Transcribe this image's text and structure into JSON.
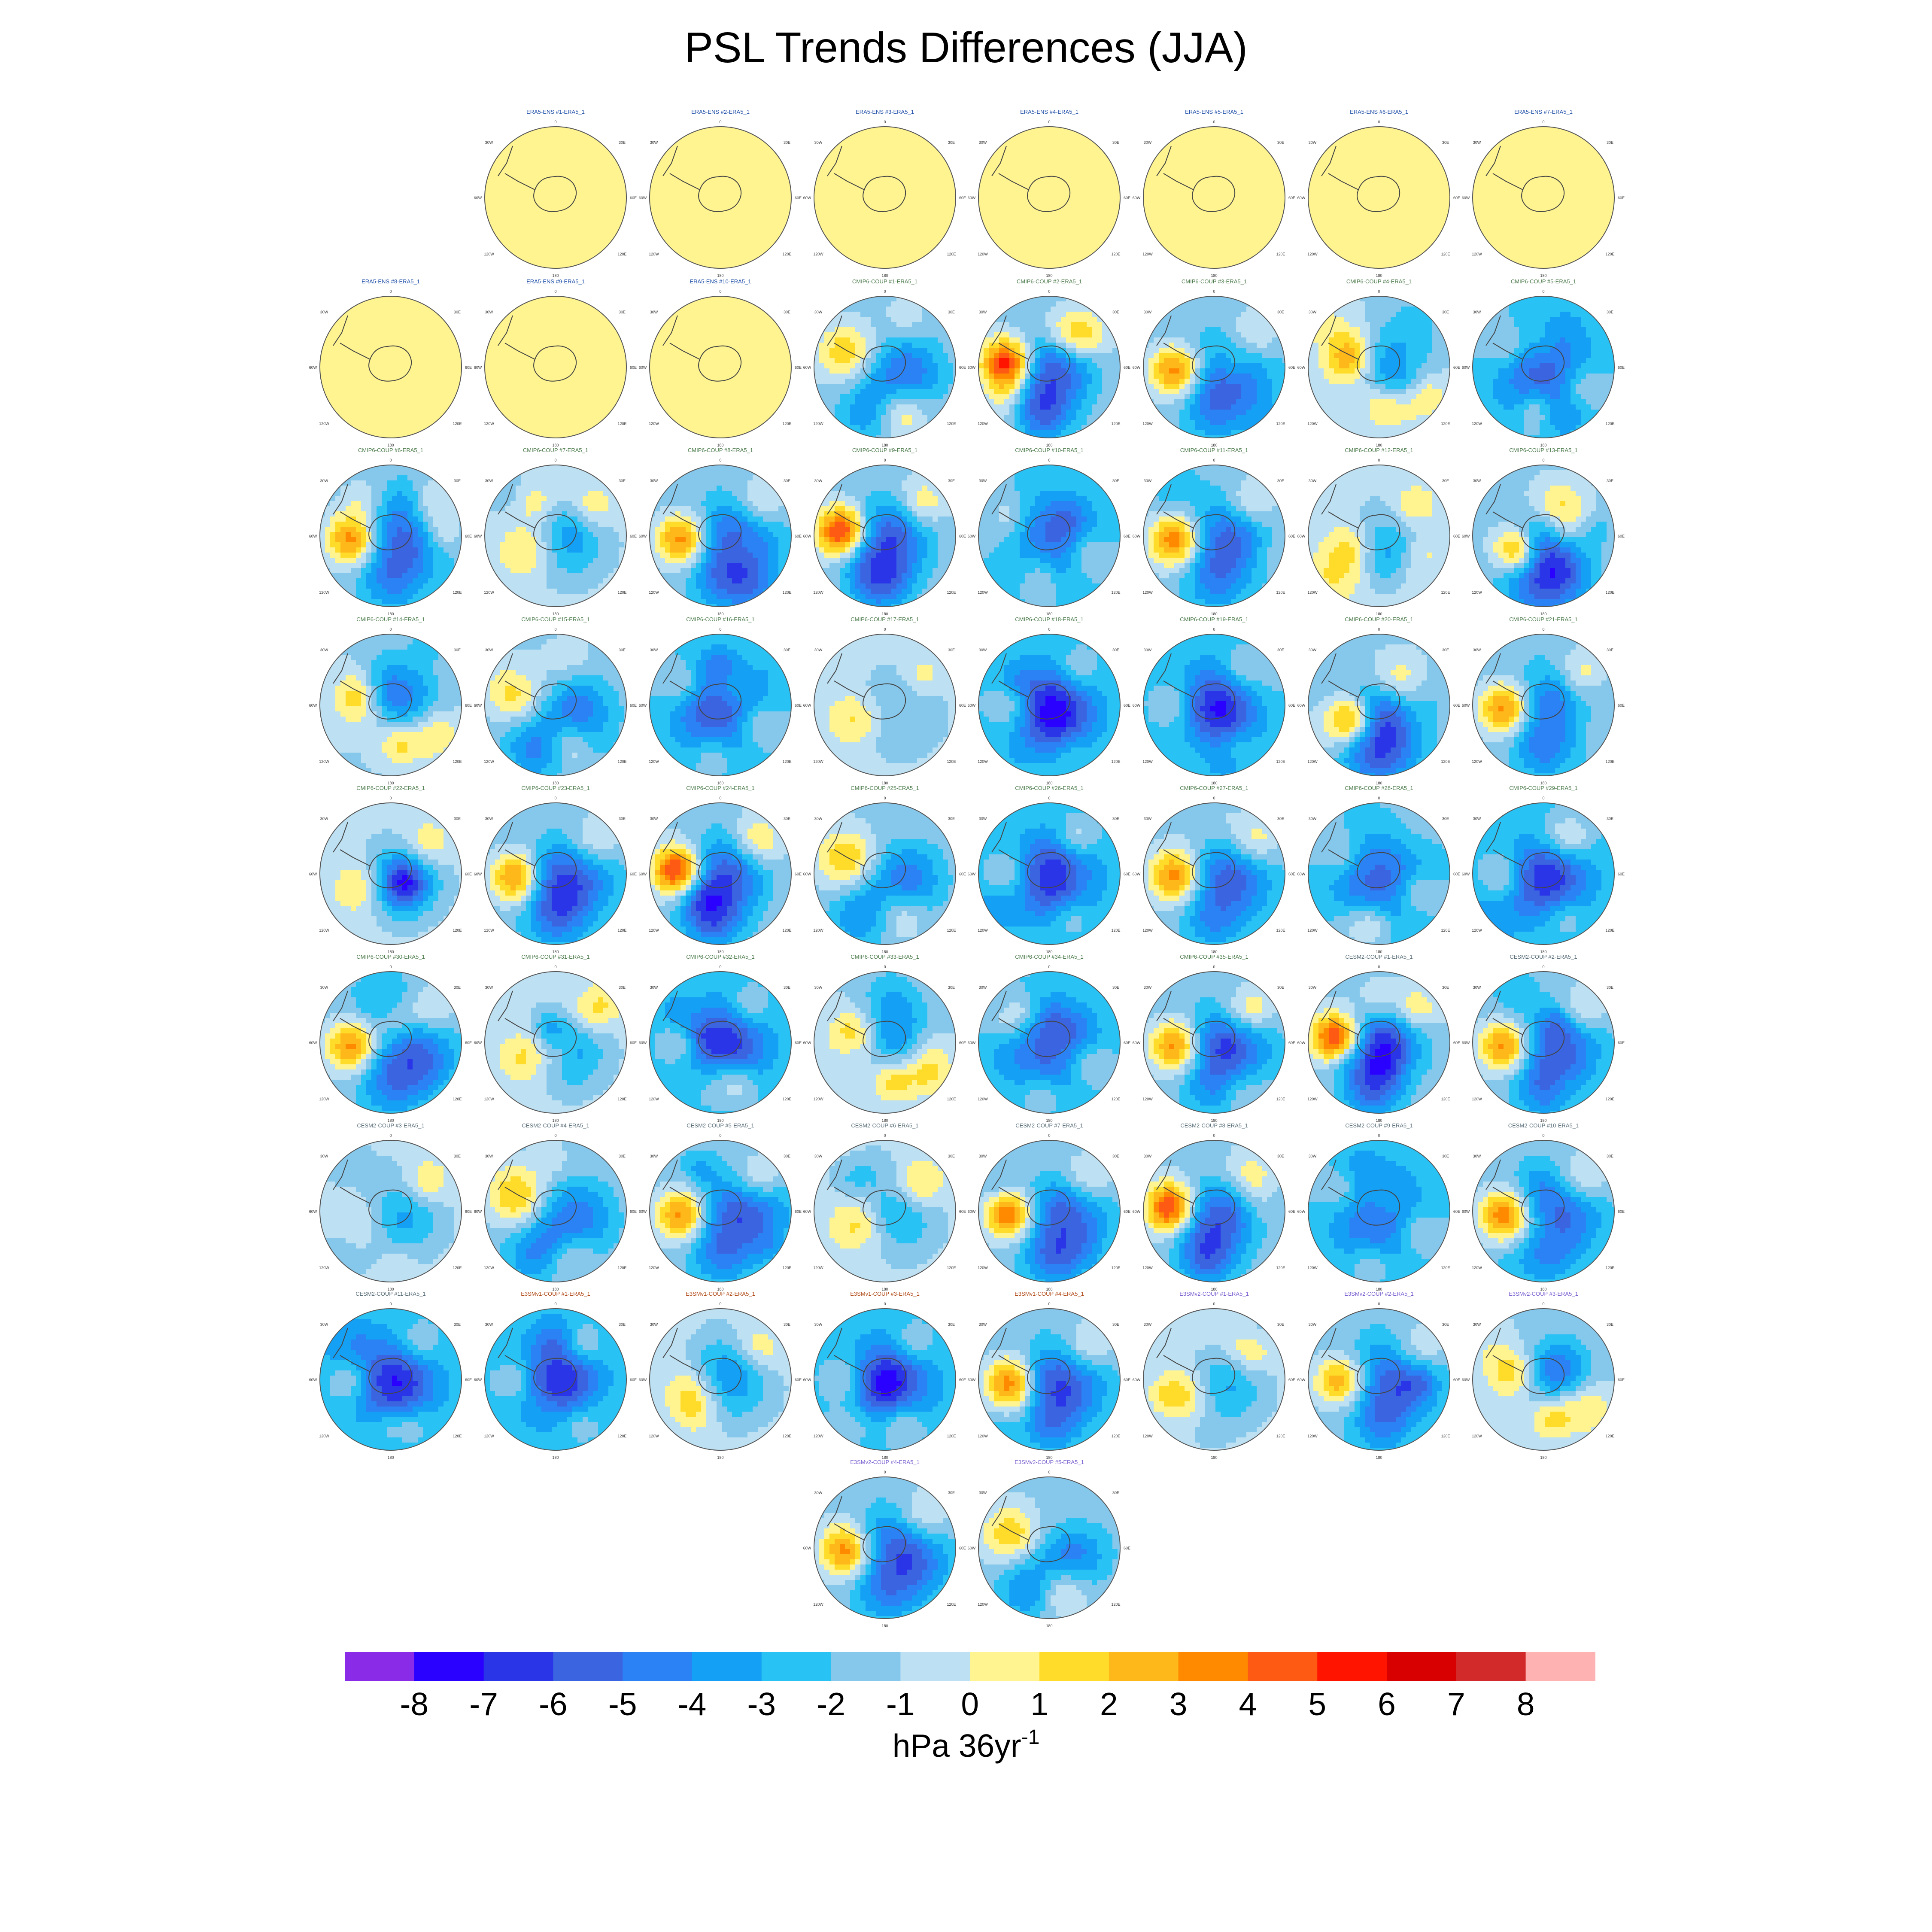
{
  "title": "PSL Trends Differences (JJA)",
  "chart_data": {
    "type": "heatmap",
    "projection": "south polar stereographic",
    "title": "PSL Trends Differences (JJA)",
    "colorbar": {
      "ticks": [
        "-8",
        "-7",
        "-6",
        "-5",
        "-4",
        "-3",
        "-2",
        "-1",
        "0",
        "1",
        "2",
        "3",
        "4",
        "5",
        "6",
        "7",
        "8"
      ],
      "colors": [
        "#8a2be8",
        "#2a00ff",
        "#2a35e8",
        "#3a64e0",
        "#2a82f4",
        "#14a0f4",
        "#28c2f4",
        "#86c8ec",
        "#bde0f2",
        "#fff490",
        "#ffdc2a",
        "#ffb81a",
        "#ff8a00",
        "#ff5a14",
        "#ff1400",
        "#d80000",
        "#d22a2a",
        "#ffb2b2"
      ],
      "units_base": "hPa 36yr",
      "units_sup": "-1"
    },
    "grid_labels": {
      "top": "0",
      "bottom": "180",
      "upper_left": "30W",
      "upper_right": "30E",
      "left": "60W",
      "right": "60E",
      "lower_left": "120W",
      "lower_right": "120E"
    },
    "panels": [
      {
        "label": "ERA5-ENS   #1-ERA5_1",
        "group": "ERA5-ENS",
        "pattern": "obs"
      },
      {
        "label": "ERA5-ENS   #2-ERA5_1",
        "group": "ERA5-ENS",
        "pattern": "obs"
      },
      {
        "label": "ERA5-ENS   #3-ERA5_1",
        "group": "ERA5-ENS",
        "pattern": "obs"
      },
      {
        "label": "ERA5-ENS   #4-ERA5_1",
        "group": "ERA5-ENS",
        "pattern": "obs"
      },
      {
        "label": "ERA5-ENS   #5-ERA5_1",
        "group": "ERA5-ENS",
        "pattern": "obs"
      },
      {
        "label": "ERA5-ENS   #6-ERA5_1",
        "group": "ERA5-ENS",
        "pattern": "obs"
      },
      {
        "label": "ERA5-ENS   #7-ERA5_1",
        "group": "ERA5-ENS",
        "pattern": "obs"
      },
      {
        "label": "ERA5-ENS   #8-ERA5_1",
        "group": "ERA5-ENS",
        "pattern": "obs"
      },
      {
        "label": "ERA5-ENS   #9-ERA5_1",
        "group": "ERA5-ENS",
        "pattern": "obs"
      },
      {
        "label": "ERA5-ENS   #10-ERA5_1",
        "group": "ERA5-ENS",
        "pattern": "obs"
      },
      {
        "label": "CMIP6-COUP  #1-ERA5_1",
        "group": "CMIP6-COUP",
        "pattern": "low"
      },
      {
        "label": "CMIP6-COUP  #2-ERA5_1",
        "group": "CMIP6-COUP",
        "pattern": "strong"
      },
      {
        "label": "CMIP6-COUP  #3-ERA5_1",
        "group": "CMIP6-COUP",
        "pattern": "west"
      },
      {
        "label": "CMIP6-COUP  #4-ERA5_1",
        "group": "CMIP6-COUP",
        "pattern": "mixed"
      },
      {
        "label": "CMIP6-COUP  #5-ERA5_1",
        "group": "CMIP6-COUP",
        "pattern": "ring"
      },
      {
        "label": "CMIP6-COUP  #6-ERA5_1",
        "group": "CMIP6-COUP",
        "pattern": "west"
      },
      {
        "label": "CMIP6-COUP  #7-ERA5_1",
        "group": "CMIP6-COUP",
        "pattern": "weak"
      },
      {
        "label": "CMIP6-COUP  #8-ERA5_1",
        "group": "CMIP6-COUP",
        "pattern": "west"
      },
      {
        "label": "CMIP6-COUP  #9-ERA5_1",
        "group": "CMIP6-COUP",
        "pattern": "strong"
      },
      {
        "label": "CMIP6-COUP  #10-ERA5_1",
        "group": "CMIP6-COUP",
        "pattern": "ring"
      },
      {
        "label": "CMIP6-COUP  #11-ERA5_1",
        "group": "CMIP6-COUP",
        "pattern": "west"
      },
      {
        "label": "CMIP6-COUP  #12-ERA5_1",
        "group": "CMIP6-COUP",
        "pattern": "weak"
      },
      {
        "label": "CMIP6-COUP  #13-ERA5_1",
        "group": "CMIP6-COUP",
        "pattern": "south"
      },
      {
        "label": "CMIP6-COUP  #14-ERA5_1",
        "group": "CMIP6-COUP",
        "pattern": "mixed"
      },
      {
        "label": "CMIP6-COUP  #15-ERA5_1",
        "group": "CMIP6-COUP",
        "pattern": "low"
      },
      {
        "label": "CMIP6-COUP  #16-ERA5_1",
        "group": "CMIP6-COUP",
        "pattern": "ring"
      },
      {
        "label": "CMIP6-COUP  #17-ERA5_1",
        "group": "CMIP6-COUP",
        "pattern": "weak"
      },
      {
        "label": "CMIP6-COUP  #18-ERA5_1",
        "group": "CMIP6-COUP",
        "pattern": "deep"
      },
      {
        "label": "CMIP6-COUP  #19-ERA5_1",
        "group": "CMIP6-COUP",
        "pattern": "deep"
      },
      {
        "label": "CMIP6-COUP  #20-ERA5_1",
        "group": "CMIP6-COUP",
        "pattern": "south"
      },
      {
        "label": "CMIP6-COUP  #21-ERA5_1",
        "group": "CMIP6-COUP",
        "pattern": "west"
      },
      {
        "label": "CMIP6-COUP  #22-ERA5_1",
        "group": "CMIP6-COUP",
        "pattern": "weak"
      },
      {
        "label": "CMIP6-COUP  #23-ERA5_1",
        "group": "CMIP6-COUP",
        "pattern": "west"
      },
      {
        "label": "CMIP6-COUP  #24-ERA5_1",
        "group": "CMIP6-COUP",
        "pattern": "strong"
      },
      {
        "label": "CMIP6-COUP  #25-ERA5_1",
        "group": "CMIP6-COUP",
        "pattern": "low"
      },
      {
        "label": "CMIP6-COUP  #26-ERA5_1",
        "group": "CMIP6-COUP",
        "pattern": "deep"
      },
      {
        "label": "CMIP6-COUP  #27-ERA5_1",
        "group": "CMIP6-COUP",
        "pattern": "west"
      },
      {
        "label": "CMIP6-COUP  #28-ERA5_1",
        "group": "CMIP6-COUP",
        "pattern": "ring"
      },
      {
        "label": "CMIP6-COUP  #29-ERA5_1",
        "group": "CMIP6-COUP",
        "pattern": "deep"
      },
      {
        "label": "CMIP6-COUP  #30-ERA5_1",
        "group": "CMIP6-COUP",
        "pattern": "west"
      },
      {
        "label": "CMIP6-COUP  #31-ERA5_1",
        "group": "CMIP6-COUP",
        "pattern": "weak"
      },
      {
        "label": "CMIP6-COUP  #32-ERA5_1",
        "group": "CMIP6-COUP",
        "pattern": "deep"
      },
      {
        "label": "CMIP6-COUP  #33-ERA5_1",
        "group": "CMIP6-COUP",
        "pattern": "mixed"
      },
      {
        "label": "CMIP6-COUP  #34-ERA5_1",
        "group": "CMIP6-COUP",
        "pattern": "ring"
      },
      {
        "label": "CMIP6-COUP  #35-ERA5_1",
        "group": "CMIP6-COUP",
        "pattern": "west"
      },
      {
        "label": "CESM2-COUP  #1-ERA5_1",
        "group": "CESM2-COUP",
        "pattern": "strong"
      },
      {
        "label": "CESM2-COUP  #2-ERA5_1",
        "group": "CESM2-COUP",
        "pattern": "west"
      },
      {
        "label": "CESM2-COUP  #3-ERA5_1",
        "group": "CESM2-COUP",
        "pattern": "weak"
      },
      {
        "label": "CESM2-COUP  #4-ERA5_1",
        "group": "CESM2-COUP",
        "pattern": "low"
      },
      {
        "label": "CESM2-COUP  #5-ERA5_1",
        "group": "CESM2-COUP",
        "pattern": "west"
      },
      {
        "label": "CESM2-COUP  #6-ERA5_1",
        "group": "CESM2-COUP",
        "pattern": "weak"
      },
      {
        "label": "CESM2-COUP  #7-ERA5_1",
        "group": "CESM2-COUP",
        "pattern": "west"
      },
      {
        "label": "CESM2-COUP  #8-ERA5_1",
        "group": "CESM2-COUP",
        "pattern": "strong"
      },
      {
        "label": "CESM2-COUP  #9-ERA5_1",
        "group": "CESM2-COUP",
        "pattern": "ring"
      },
      {
        "label": "CESM2-COUP  #10-ERA5_1",
        "group": "CESM2-COUP",
        "pattern": "west"
      },
      {
        "label": "CESM2-COUP  #11-ERA5_1",
        "group": "CESM2-COUP",
        "pattern": "deep"
      },
      {
        "label": "E3SMv1-COUP  #1-ERA5_1",
        "group": "E3SMv1-COUP",
        "pattern": "deep"
      },
      {
        "label": "E3SMv1-COUP  #2-ERA5_1",
        "group": "E3SMv1-COUP",
        "pattern": "weak"
      },
      {
        "label": "E3SMv1-COUP  #3-ERA5_1",
        "group": "E3SMv1-COUP",
        "pattern": "deep"
      },
      {
        "label": "E3SMv1-COUP  #4-ERA5_1",
        "group": "E3SMv1-COUP",
        "pattern": "west"
      },
      {
        "label": "E3SMv2-COUP  #1-ERA5_1",
        "group": "E3SMv2-COUP",
        "pattern": "weak"
      },
      {
        "label": "E3SMv2-COUP  #2-ERA5_1",
        "group": "E3SMv2-COUP",
        "pattern": "west"
      },
      {
        "label": "E3SMv2-COUP  #3-ERA5_1",
        "group": "E3SMv2-COUP",
        "pattern": "mixed"
      },
      {
        "label": "E3SMv2-COUP  #4-ERA5_1",
        "group": "E3SMv2-COUP",
        "pattern": "west"
      },
      {
        "label": "E3SMv2-COUP  #5-ERA5_1",
        "group": "E3SMv2-COUP",
        "pattern": "low"
      }
    ],
    "group_colors": {
      "ERA5-ENS": "#1f4fa8",
      "CMIP6-COUP": "#4a7a4a",
      "CESM2-COUP": "#5a6f7a",
      "E3SMv1-COUP": "#b04a18",
      "E3SMv2-COUP": "#7a5fd0"
    }
  }
}
